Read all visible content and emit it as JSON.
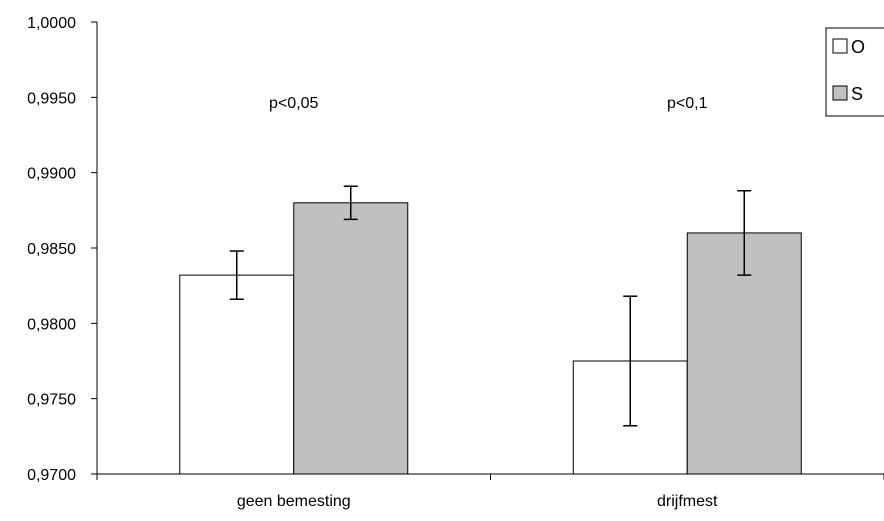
{
  "chart_data": {
    "type": "bar",
    "categories": [
      "geen bemesting",
      "drijfmest"
    ],
    "series": [
      {
        "name": "O",
        "values": [
          0.9832,
          0.9775
        ],
        "errors": [
          0.0016,
          0.0043
        ],
        "color": "#ffffff"
      },
      {
        "name": "S",
        "values": [
          0.988,
          0.986
        ],
        "errors": [
          0.0011,
          0.0028
        ],
        "color": "#c0c0c0"
      }
    ],
    "ylim": [
      0.97,
      1.0
    ],
    "yticks": [
      "0,9700",
      "0,9750",
      "0,9800",
      "0,9850",
      "0,9900",
      "0,9950",
      "1,0000"
    ],
    "ytick_values": [
      0.97,
      0.975,
      0.98,
      0.985,
      0.99,
      0.995,
      1.0
    ],
    "annotations": [
      "p<0,05",
      "p<0,1"
    ],
    "legend": "top-right",
    "grid": false,
    "title": "",
    "xlabel": "",
    "ylabel": ""
  }
}
